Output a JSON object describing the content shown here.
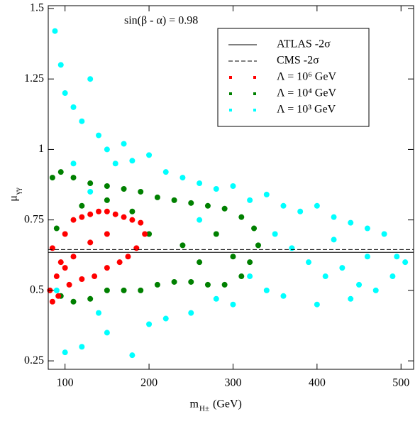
{
  "chart_data": {
    "type": "scatter",
    "annotation": "sin(β - α) = 0.98",
    "x_label": {
      "base": "m",
      "sub": "H±",
      "unit": "(GeV)"
    },
    "y_label": {
      "base": "μ",
      "sub": "γγ"
    },
    "xlim": [
      80,
      515
    ],
    "xticks": [
      100,
      200,
      300,
      400,
      500
    ],
    "ylim": [
      0.22,
      1.51
    ],
    "yticks": [
      0.25,
      0.5,
      0.75,
      1,
      1.25,
      1.5
    ],
    "lines": [
      {
        "name": "ATLAS -2σ",
        "y": 0.635,
        "style": "solid",
        "color": "#000000"
      },
      {
        "name": "CMS -2σ",
        "y": 0.645,
        "style": "dashed",
        "color": "#000000"
      }
    ],
    "series": [
      {
        "name": "Λ = 10³ GeV",
        "color": "#00ffff",
        "x": [
          88,
          95,
          100,
          110,
          120,
          130,
          140,
          150,
          160,
          170,
          180,
          200,
          220,
          240,
          260,
          280,
          300,
          320,
          340,
          360,
          380,
          400,
          420,
          440,
          460,
          480,
          495,
          505,
          350,
          370,
          390,
          410,
          430,
          450,
          470,
          340,
          300,
          250,
          200,
          150,
          120,
          100,
          180,
          220,
          280,
          320,
          360,
          400,
          440,
          490,
          140,
          90,
          110,
          130,
          260,
          420,
          460
        ],
        "values": [
          1.42,
          1.3,
          1.2,
          1.15,
          1.1,
          1.25,
          1.05,
          1.0,
          0.95,
          1.02,
          0.96,
          0.98,
          0.92,
          0.9,
          0.88,
          0.86,
          0.87,
          0.82,
          0.84,
          0.8,
          0.78,
          0.8,
          0.76,
          0.74,
          0.72,
          0.7,
          0.62,
          0.6,
          0.7,
          0.65,
          0.6,
          0.55,
          0.58,
          0.52,
          0.5,
          0.5,
          0.45,
          0.42,
          0.38,
          0.35,
          0.3,
          0.28,
          0.27,
          0.4,
          0.47,
          0.55,
          0.48,
          0.45,
          0.47,
          0.55,
          0.42,
          0.5,
          0.95,
          0.85,
          0.75,
          0.68,
          0.62
        ]
      },
      {
        "name": "Λ = 10⁴ GeV",
        "color": "#008000",
        "x": [
          85,
          95,
          110,
          130,
          150,
          170,
          190,
          210,
          230,
          250,
          270,
          290,
          310,
          325,
          330,
          320,
          310,
          290,
          270,
          250,
          230,
          210,
          190,
          170,
          150,
          130,
          110,
          95,
          200,
          240,
          280,
          300,
          150,
          180,
          260,
          120,
          90
        ],
        "values": [
          0.9,
          0.92,
          0.9,
          0.88,
          0.87,
          0.86,
          0.85,
          0.83,
          0.82,
          0.81,
          0.8,
          0.79,
          0.76,
          0.72,
          0.66,
          0.6,
          0.55,
          0.52,
          0.52,
          0.53,
          0.53,
          0.52,
          0.5,
          0.5,
          0.5,
          0.47,
          0.46,
          0.48,
          0.7,
          0.66,
          0.7,
          0.62,
          0.82,
          0.78,
          0.6,
          0.8,
          0.72
        ]
      },
      {
        "name": "Λ = 10⁶ GeV",
        "color": "#ff0000",
        "x": [
          82,
          85,
          90,
          95,
          100,
          110,
          120,
          130,
          140,
          150,
          160,
          170,
          180,
          190,
          195,
          185,
          175,
          165,
          150,
          135,
          120,
          105,
          92,
          130,
          110,
          150,
          100,
          85
        ],
        "values": [
          0.5,
          0.46,
          0.55,
          0.6,
          0.7,
          0.75,
          0.76,
          0.77,
          0.78,
          0.78,
          0.77,
          0.76,
          0.75,
          0.74,
          0.7,
          0.65,
          0.62,
          0.6,
          0.58,
          0.55,
          0.54,
          0.52,
          0.48,
          0.67,
          0.62,
          0.7,
          0.58,
          0.65
        ]
      }
    ]
  }
}
